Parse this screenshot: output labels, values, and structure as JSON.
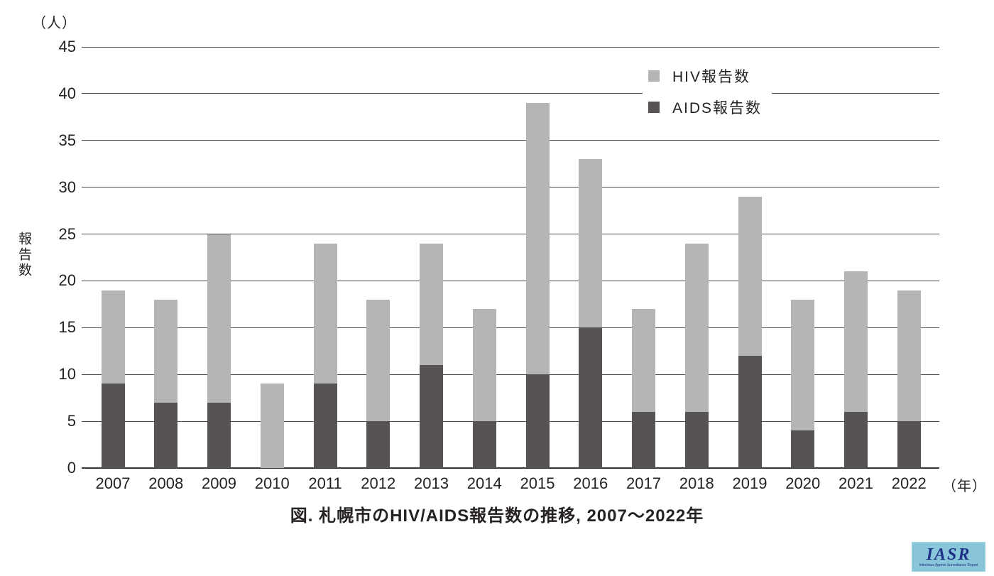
{
  "figure": {
    "title": "図. 札幌市のHIV/AIDS報告数の推移, 2007〜2022年"
  },
  "chart_data": {
    "type": "bar",
    "stacked": true,
    "title": "図. 札幌市のHIV/AIDS報告数の推移, 2007〜2022年",
    "categories": [
      "2007",
      "2008",
      "2009",
      "2010",
      "2011",
      "2012",
      "2013",
      "2014",
      "2015",
      "2016",
      "2017",
      "2018",
      "2019",
      "2020",
      "2021",
      "2022"
    ],
    "series": [
      {
        "name": "HIV報告数",
        "color": "#b5b5b6",
        "values": [
          10,
          11,
          18,
          9,
          15,
          13,
          13,
          12,
          29,
          18,
          11,
          18,
          17,
          14,
          15,
          14
        ]
      },
      {
        "name": "AIDS報告数",
        "color": "#575355",
        "values": [
          9,
          7,
          7,
          0,
          9,
          5,
          11,
          5,
          10,
          15,
          6,
          6,
          12,
          4,
          6,
          5
        ]
      }
    ],
    "totals": [
      19,
      18,
      25,
      9,
      24,
      18,
      24,
      17,
      39,
      33,
      17,
      24,
      29,
      18,
      21,
      19
    ],
    "xlabel": "（年）",
    "ylabel": "報告数",
    "y_unit_label": "（人）",
    "ylim": [
      0,
      45
    ],
    "ytick_step": 5,
    "grid": true,
    "legend_position": "top-right"
  },
  "logo": {
    "text": "IASR",
    "caption": "Infectious Agents Surveillance Report",
    "bg_color": "#89c6d9",
    "text_color": "#1d3186"
  },
  "colors": {
    "text": "#262223",
    "gridline": "#4f4b4c",
    "baseline": "#3a3637"
  }
}
